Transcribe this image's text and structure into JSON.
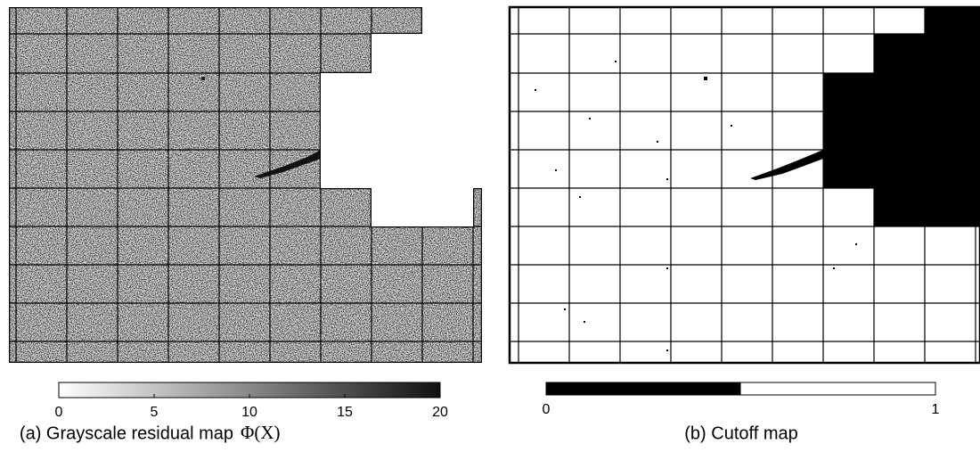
{
  "panels": [
    {
      "caption": "(a) Grayscale residual map",
      "symbol": "Φ(X)",
      "colorbar": {
        "range": [
          0,
          20
        ],
        "ticks": [
          0,
          5,
          10,
          15,
          20
        ]
      }
    },
    {
      "caption": "(b) Cutoff map",
      "colorbar": {
        "range": [
          0,
          1
        ],
        "ticks": [
          0,
          1
        ],
        "cutoff": 0.5
      }
    }
  ]
}
